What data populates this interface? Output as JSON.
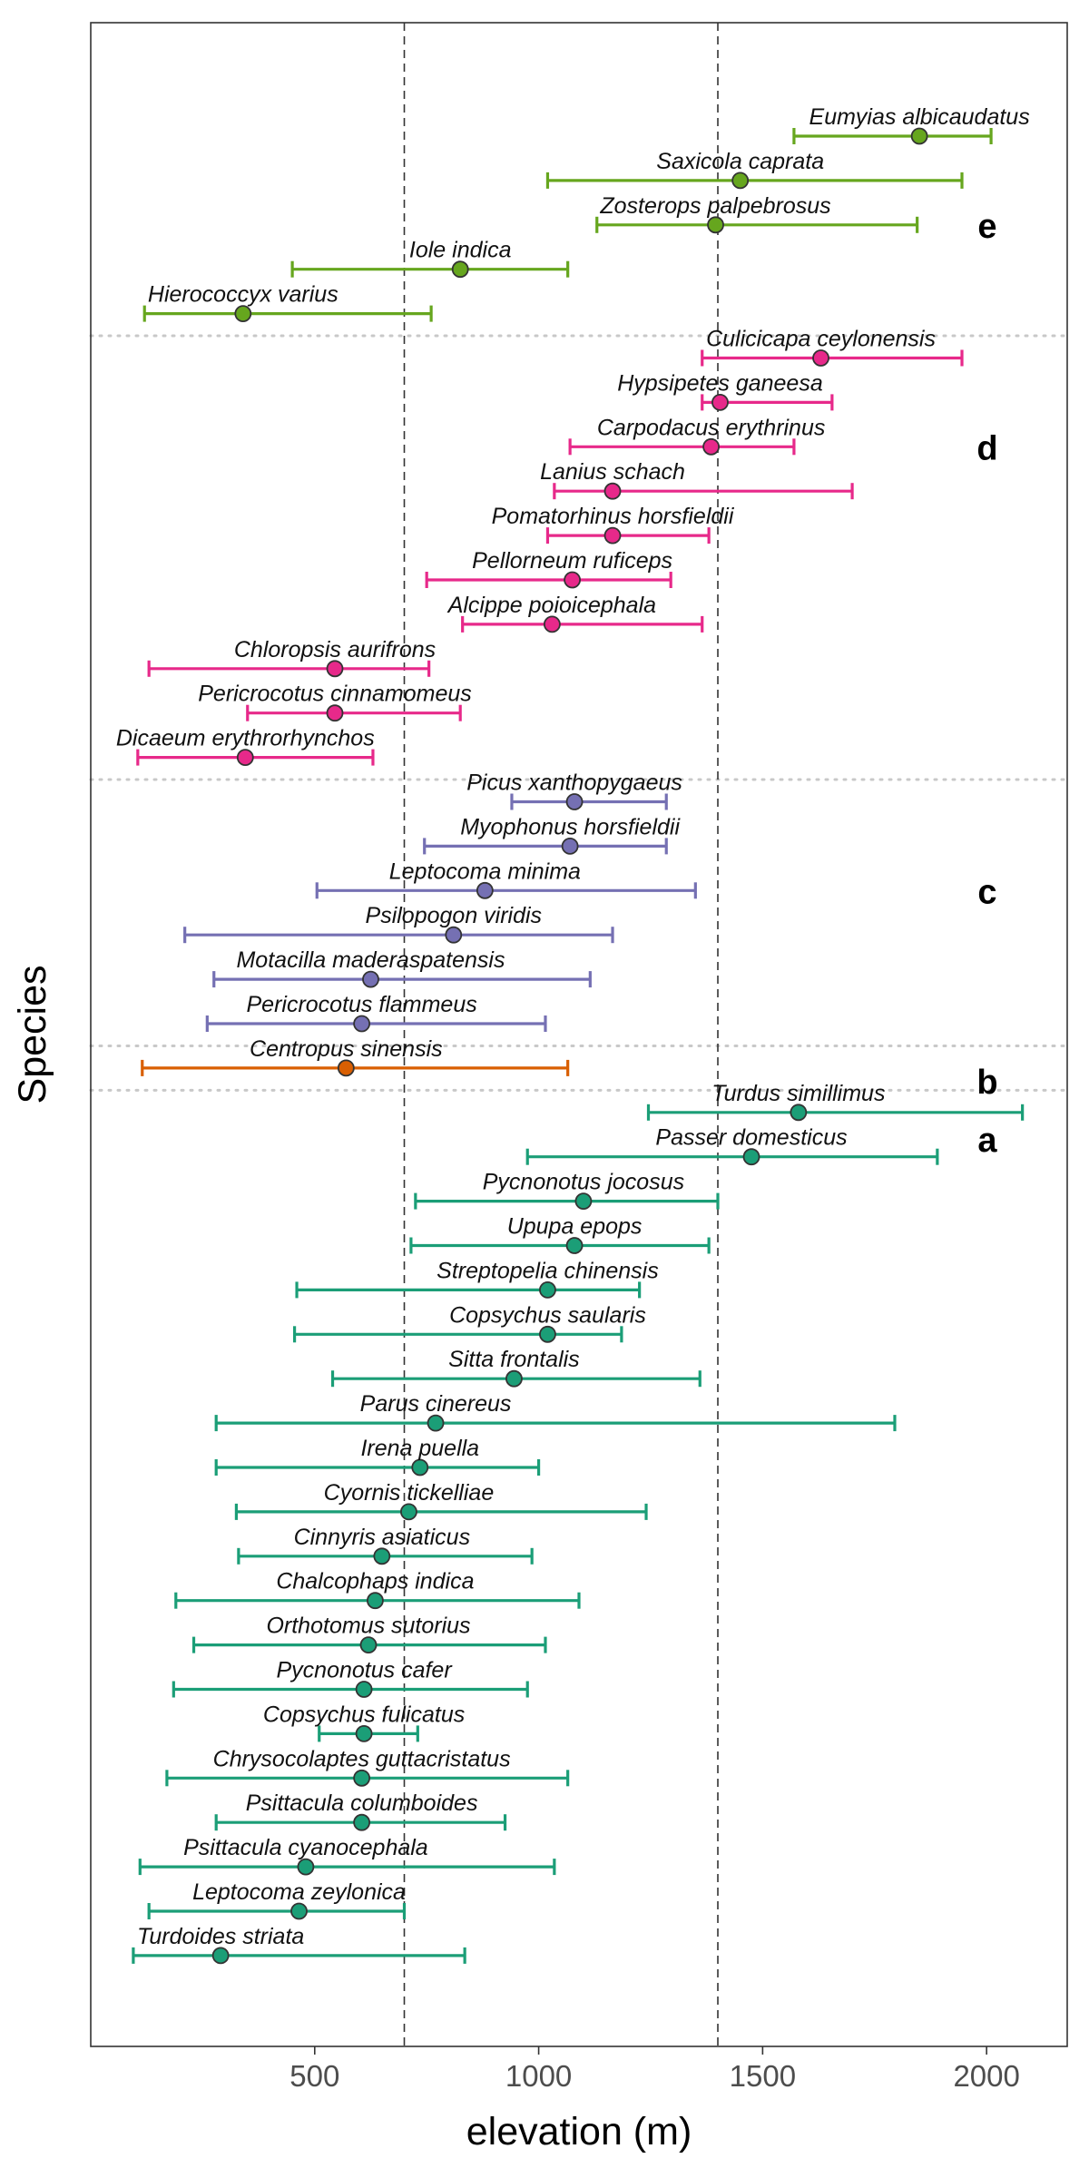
{
  "chart_data": {
    "type": "errorbar",
    "xlabel": "elevation (m)",
    "ylabel": "Species",
    "xlim": [
      0,
      2180
    ],
    "xticks": [
      500,
      1000,
      1500,
      2000
    ],
    "reference_lines": [
      700,
      1400
    ],
    "grid": false,
    "groups": [
      {
        "name": "e",
        "color": "#66a61e",
        "species": [
          {
            "name": "Eumyias albicaudatus",
            "mean": 1850,
            "low": 1570,
            "high": 2010
          },
          {
            "name": "Saxicola caprata",
            "mean": 1450,
            "low": 1020,
            "high": 1945
          },
          {
            "name": "Zosterops palpebrosus",
            "mean": 1395,
            "low": 1130,
            "high": 1845
          },
          {
            "name": "Iole indica",
            "mean": 825,
            "low": 450,
            "high": 1065
          },
          {
            "name": "Hierococcyx varius",
            "mean": 340,
            "low": 120,
            "high": 760
          }
        ]
      },
      {
        "name": "d",
        "color": "#e7298a",
        "species": [
          {
            "name": "Culicicapa ceylonensis",
            "mean": 1630,
            "low": 1365,
            "high": 1945
          },
          {
            "name": "Hypsipetes ganeesa",
            "mean": 1405,
            "low": 1365,
            "high": 1655
          },
          {
            "name": "Carpodacus erythrinus",
            "mean": 1385,
            "low": 1070,
            "high": 1570
          },
          {
            "name": "Lanius schach",
            "mean": 1165,
            "low": 1035,
            "high": 1700
          },
          {
            "name": "Pomatorhinus horsfieldii",
            "mean": 1165,
            "low": 1020,
            "high": 1380
          },
          {
            "name": "Pellorneum ruficeps",
            "mean": 1075,
            "low": 750,
            "high": 1295
          },
          {
            "name": "Alcippe poioicephala",
            "mean": 1030,
            "low": 830,
            "high": 1365
          },
          {
            "name": "Chloropsis aurifrons",
            "mean": 545,
            "low": 130,
            "high": 755
          },
          {
            "name": "Pericrocotus cinnamomeus",
            "mean": 545,
            "low": 350,
            "high": 825
          },
          {
            "name": "Dicaeum erythrorhynchos",
            "mean": 345,
            "low": 105,
            "high": 630
          }
        ]
      },
      {
        "name": "c",
        "color": "#7570b3",
        "species": [
          {
            "name": "Picus xanthopygaeus",
            "mean": 1080,
            "low": 940,
            "high": 1285
          },
          {
            "name": "Myophonus horsfieldii",
            "mean": 1070,
            "low": 745,
            "high": 1285
          },
          {
            "name": "Leptocoma minima",
            "mean": 880,
            "low": 505,
            "high": 1350
          },
          {
            "name": "Psilopogon viridis",
            "mean": 810,
            "low": 210,
            "high": 1165
          },
          {
            "name": "Motacilla maderaspatensis",
            "mean": 625,
            "low": 275,
            "high": 1115
          },
          {
            "name": "Pericrocotus flammeus",
            "mean": 605,
            "low": 260,
            "high": 1015
          }
        ]
      },
      {
        "name": "b",
        "color": "#d95f02",
        "species": [
          {
            "name": "Centropus sinensis",
            "mean": 570,
            "low": 115,
            "high": 1065
          }
        ]
      },
      {
        "name": "a",
        "color": "#1b9e77",
        "species": [
          {
            "name": "Turdus simillimus",
            "mean": 1580,
            "low": 1245,
            "high": 2080
          },
          {
            "name": "Passer domesticus",
            "mean": 1475,
            "low": 975,
            "high": 1890
          },
          {
            "name": "Pycnonotus jocosus",
            "mean": 1100,
            "low": 725,
            "high": 1400
          },
          {
            "name": "Upupa epops",
            "mean": 1080,
            "low": 715,
            "high": 1380
          },
          {
            "name": "Streptopelia chinensis",
            "mean": 1020,
            "low": 460,
            "high": 1225
          },
          {
            "name": "Copsychus saularis",
            "mean": 1020,
            "low": 455,
            "high": 1185
          },
          {
            "name": "Sitta frontalis",
            "mean": 945,
            "low": 540,
            "high": 1360
          },
          {
            "name": "Parus cinereus",
            "mean": 770,
            "low": 280,
            "high": 1795
          },
          {
            "name": "Irena puella",
            "mean": 735,
            "low": 280,
            "high": 1000
          },
          {
            "name": "Cyornis tickelliae",
            "mean": 710,
            "low": 325,
            "high": 1240
          },
          {
            "name": "Cinnyris asiaticus",
            "mean": 650,
            "low": 330,
            "high": 985
          },
          {
            "name": "Chalcophaps indica",
            "mean": 635,
            "low": 190,
            "high": 1090
          },
          {
            "name": "Orthotomus sutorius",
            "mean": 620,
            "low": 230,
            "high": 1015
          },
          {
            "name": "Pycnonotus cafer",
            "mean": 610,
            "low": 185,
            "high": 975
          },
          {
            "name": "Copsychus fulicatus",
            "mean": 610,
            "low": 510,
            "high": 730
          },
          {
            "name": "Chrysocolaptes guttacristatus",
            "mean": 605,
            "low": 170,
            "high": 1065
          },
          {
            "name": "Psittacula columboides",
            "mean": 605,
            "low": 280,
            "high": 925
          },
          {
            "name": "Psittacula cyanocephala",
            "mean": 480,
            "low": 110,
            "high": 1035
          },
          {
            "name": "Leptocoma zeylonica",
            "mean": 465,
            "low": 130,
            "high": 700
          },
          {
            "name": "Turdoides striata",
            "mean": 290,
            "low": 95,
            "high": 835
          }
        ]
      }
    ]
  }
}
